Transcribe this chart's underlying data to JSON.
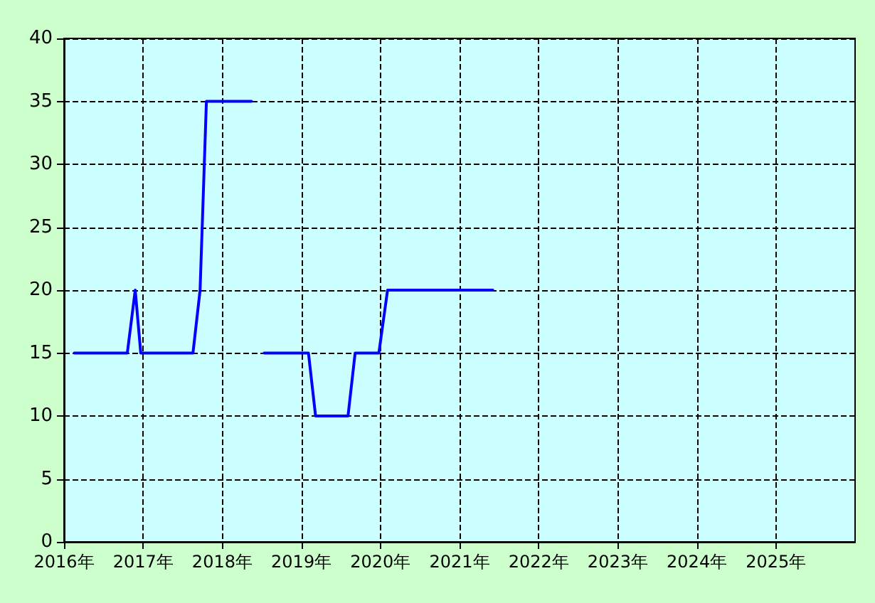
{
  "chart_data": {
    "type": "line",
    "x": [
      2016.13,
      2016.8,
      2016.9,
      2016.97,
      2017.63,
      2017.72,
      2017.8,
      2018.37,
      2018.45,
      2018.53,
      2019.09,
      2019.18,
      2019.59,
      2019.68,
      2019.98,
      2020.09,
      2021.42
    ],
    "series": [
      {
        "color": "#0000ff",
        "values": [
          15,
          15,
          20,
          15,
          15,
          20,
          35,
          35,
          null,
          15,
          15,
          10,
          10,
          15,
          15,
          20,
          20
        ]
      }
    ],
    "xlim": [
      2016,
      2026
    ],
    "xticks": [
      {
        "value": 2016,
        "label": "2016年"
      },
      {
        "value": 2017,
        "label": "2017年"
      },
      {
        "value": 2018,
        "label": "2018年"
      },
      {
        "value": 2019,
        "label": "2019年"
      },
      {
        "value": 2020,
        "label": "2020年"
      },
      {
        "value": 2021,
        "label": "2021年"
      },
      {
        "value": 2022,
        "label": "2022年"
      },
      {
        "value": 2023,
        "label": "2023年"
      },
      {
        "value": 2024,
        "label": "2024年"
      },
      {
        "value": 2025,
        "label": "2025年"
      }
    ],
    "ylim": [
      0,
      40
    ],
    "yticks": [
      0,
      5,
      10,
      15,
      20,
      25,
      30,
      35,
      40
    ],
    "grid": true,
    "marker": "none",
    "line_style": "solid"
  }
}
